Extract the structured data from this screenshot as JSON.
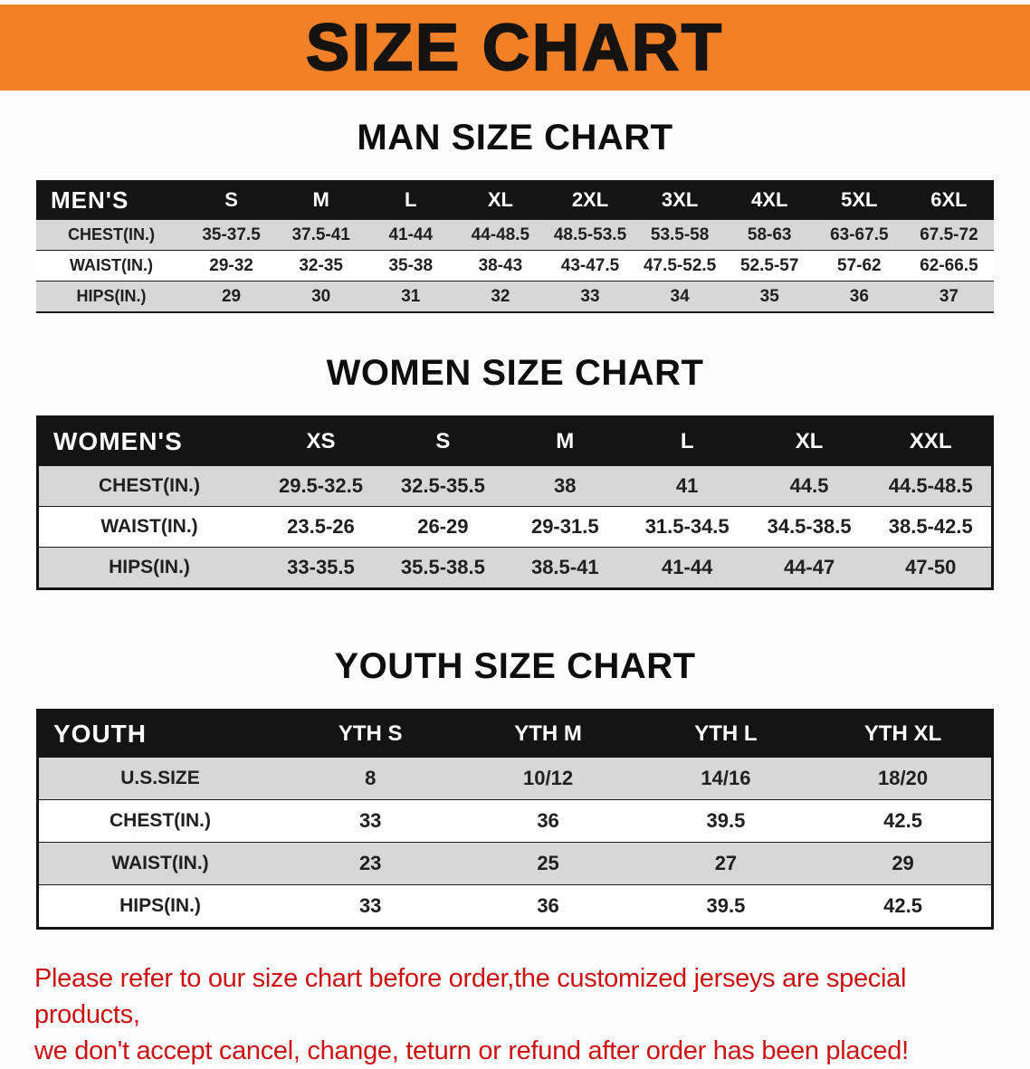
{
  "banner": {
    "title": "SIZE CHART"
  },
  "sections": [
    {
      "heading": "MAN SIZE CHART",
      "table": {
        "header": [
          "MEN'S",
          "S",
          "M",
          "L",
          "XL",
          "2XL",
          "3XL",
          "4XL",
          "5XL",
          "6XL"
        ],
        "rows": [
          {
            "label": "CHEST(IN.)",
            "values": [
              "35-37.5",
              "37.5-41",
              "41-44",
              "44-48.5",
              "48.5-53.5",
              "53.5-58",
              "58-63",
              "63-67.5",
              "67.5-72"
            ]
          },
          {
            "label": "WAIST(IN.)",
            "values": [
              "29-32",
              "32-35",
              "35-38",
              "38-43",
              "43-47.5",
              "47.5-52.5",
              "52.5-57",
              "57-62",
              "62-66.5"
            ]
          },
          {
            "label": "HIPS(IN.)",
            "values": [
              "29",
              "30",
              "31",
              "32",
              "33",
              "34",
              "35",
              "36",
              "37"
            ]
          }
        ]
      }
    },
    {
      "heading": "WOMEN SIZE CHART",
      "table": {
        "header": [
          "WOMEN'S",
          "XS",
          "S",
          "M",
          "L",
          "XL",
          "XXL"
        ],
        "rows": [
          {
            "label": "CHEST(IN.)",
            "values": [
              "29.5-32.5",
              "32.5-35.5",
              "38",
              "41",
              "44.5",
              "44.5-48.5"
            ]
          },
          {
            "label": "WAIST(IN.)",
            "values": [
              "23.5-26",
              "26-29",
              "29-31.5",
              "31.5-34.5",
              "34.5-38.5",
              "38.5-42.5"
            ]
          },
          {
            "label": "HIPS(IN.)",
            "values": [
              "33-35.5",
              "35.5-38.5",
              "38.5-41",
              "41-44",
              "44-47",
              "47-50"
            ]
          }
        ]
      }
    },
    {
      "heading": "YOUTH SIZE CHART",
      "table": {
        "header": [
          "YOUTH",
          "YTH S",
          "YTH M",
          "YTH L",
          "YTH XL"
        ],
        "rows": [
          {
            "label": "U.S.SIZE",
            "values": [
              "8",
              "10/12",
              "14/16",
              "18/20"
            ]
          },
          {
            "label": "CHEST(IN.)",
            "values": [
              "33",
              "36",
              "39.5",
              "42.5"
            ]
          },
          {
            "label": "WAIST(IN.)",
            "values": [
              "23",
              "25",
              "27",
              "29"
            ]
          },
          {
            "label": "HIPS(IN.)",
            "values": [
              "33",
              "36",
              "39.5",
              "42.5"
            ]
          }
        ]
      }
    }
  ],
  "footer": {
    "lines": [
      "Please refer to our size chart before order,the customized jerseys are special products,",
      "we don't accept cancel, change, teturn or refund after order has been placed!"
    ]
  },
  "colors": {
    "banner_bg": "#f28027",
    "table_header_bg": "#141414",
    "row_alt_bg": "#d7d7d7",
    "notice_text": "#cc1212"
  }
}
